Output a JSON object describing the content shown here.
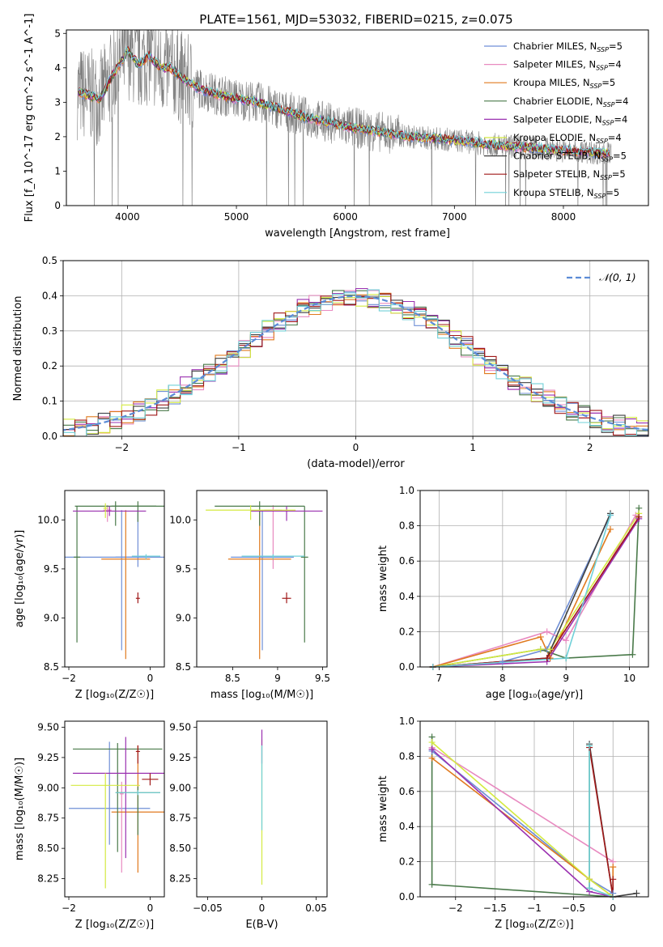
{
  "figure_title": "PLATE=1561, MJD=53032, FIBERID=0215, z=0.075",
  "colors": {
    "chabrier_miles": "#6f8fd6",
    "salpeter_miles": "#e88ac0",
    "kroupa_miles": "#e07a1f",
    "chabrier_elodie": "#4a7a4a",
    "salpeter_elodie": "#9a30b0",
    "kroupa_elodie": "#d4ea40",
    "chabrier_stelib": "#404040",
    "salpeter_stelib": "#a01818",
    "kroupa_stelib": "#70d0d8",
    "data": "#808080",
    "gaussian": "#5b8bd6",
    "grid": "#b0b0b0"
  },
  "chart_data": [
    {
      "id": "spectrum",
      "type": "line",
      "title": "PLATE=1561, MJD=53032, FIBERID=0215, z=0.075",
      "xlabel": "wavelength [Angstrom, rest frame]",
      "ylabel": "Flux [f_λ 10^-17 erg cm^-2 s^-1 A^-1]",
      "xlim": [
        3440,
        8780
      ],
      "ylim": [
        0,
        5.1
      ],
      "xticks": [
        4000,
        5000,
        6000,
        7000,
        8000
      ],
      "yticks": [
        0,
        1,
        2,
        3,
        4,
        5
      ],
      "grid": false,
      "legend_position": "top-right",
      "continuum": {
        "x": [
          3550,
          3650,
          3750,
          3850,
          3950,
          4000,
          4100,
          4200,
          4300,
          4400,
          4500,
          4600,
          4700,
          4800,
          5000,
          5200,
          5400,
          5600,
          5800,
          6000,
          6200,
          6400,
          6600,
          6800,
          7000,
          7200,
          7400,
          7600,
          7800,
          8000,
          8200,
          8400
        ],
        "y": [
          3.3,
          3.2,
          3.1,
          3.7,
          4.2,
          4.5,
          4.1,
          4.35,
          4.0,
          4.0,
          3.7,
          3.5,
          3.35,
          3.25,
          3.1,
          3.0,
          2.8,
          2.6,
          2.45,
          2.3,
          2.2,
          2.1,
          2.0,
          1.95,
          1.9,
          1.82,
          1.75,
          1.7,
          1.65,
          1.6,
          1.55,
          1.52
        ]
      },
      "series": [
        {
          "name": "Chabrier MILES, N_SSP=5",
          "label_main": "Chabrier MILES, N",
          "label_sub": "SSP",
          "label_tail": "=5",
          "color_key": "chabrier_miles"
        },
        {
          "name": "Salpeter MILES, N_SSP=4",
          "label_main": "Salpeter MILES, N",
          "label_sub": "SSP",
          "label_tail": "=4",
          "color_key": "salpeter_miles"
        },
        {
          "name": "Kroupa MILES, N_SSP=5",
          "label_main": "Kroupa MILES, N",
          "label_sub": "SSP",
          "label_tail": "=5",
          "color_key": "kroupa_miles"
        },
        {
          "name": "Chabrier ELODIE, N_SSP=4",
          "label_main": "Chabrier ELODIE, N",
          "label_sub": "SSP",
          "label_tail": "=4",
          "color_key": "chabrier_elodie"
        },
        {
          "name": "Salpeter ELODIE, N_SSP=4",
          "label_main": "Salpeter ELODIE, N",
          "label_sub": "SSP",
          "label_tail": "=4",
          "color_key": "salpeter_elodie"
        },
        {
          "name": "Kroupa ELODIE, N_SSP=4",
          "label_main": "Kroupa ELODIE, N",
          "label_sub": "SSP",
          "label_tail": "=4",
          "color_key": "kroupa_elodie"
        },
        {
          "name": "Chabrier STELIB, N_SSP=5",
          "label_main": "Chabrier STELIB, N",
          "label_sub": "SSP",
          "label_tail": "=5",
          "color_key": "chabrier_stelib"
        },
        {
          "name": "Salpeter STELIB, N_SSP=5",
          "label_main": "Salpeter STELIB, N",
          "label_sub": "SSP",
          "label_tail": "=5",
          "color_key": "salpeter_stelib"
        },
        {
          "name": "Kroupa STELIB, N_SSP=5",
          "label_main": "Kroupa STELIB, N",
          "label_sub": "SSP",
          "label_tail": "=5",
          "color_key": "kroupa_stelib"
        }
      ]
    },
    {
      "id": "residuals",
      "type": "histogram",
      "xlabel": "(data-model)/error",
      "ylabel": "Normed distribution",
      "xlim": [
        -2.5,
        2.5
      ],
      "ylim": [
        0,
        0.5
      ],
      "xticks": [
        -2,
        -1,
        0,
        1,
        2
      ],
      "yticks": [
        0.0,
        0.1,
        0.2,
        0.3,
        0.4,
        0.5
      ],
      "grid": true,
      "legend_position": "top-right",
      "legend_label": "𝒩(0, 1)",
      "bin_width": 0.1,
      "gaussian": {
        "mean": 0,
        "sigma": 1,
        "name": "𝒩(0, 1)"
      }
    },
    {
      "id": "age_vs_z",
      "type": "errorbar",
      "xlabel": "Z [log₁₀(Z/Z☉)]",
      "ylabel": "age  [log₁₀(age/yr)]",
      "xlim": [
        -2.1,
        0.35
      ],
      "ylim": [
        8.5,
        10.3
      ],
      "xticks": [
        -2,
        0
      ],
      "yticks": [
        8.5,
        9.0,
        9.5,
        10.0
      ],
      "grid": false,
      "points": [
        {
          "x": -0.7,
          "xerr": 1.5,
          "y": 9.62,
          "yerr": [
            0.95,
            0.48
          ],
          "color_key": "chabrier_miles"
        },
        {
          "x": -0.3,
          "xerr": 0.55,
          "y": 9.62,
          "yerr": [
            0.1,
            0.48
          ],
          "color_key": "chabrier_miles"
        },
        {
          "x": -1.05,
          "xerr": 0.1,
          "y": 10.1,
          "yerr": [
            0.12,
            0.05
          ],
          "color_key": "salpeter_miles"
        },
        {
          "x": -0.6,
          "xerr": 0.6,
          "y": 9.6,
          "yerr": [
            1.02,
            0.5
          ],
          "color_key": "kroupa_miles"
        },
        {
          "x": -0.85,
          "xerr": 1.0,
          "y": 10.14,
          "yerr": [
            0.2,
            0.05
          ],
          "color_key": "chabrier_elodie"
        },
        {
          "x": -0.3,
          "xerr": 0.65,
          "y": 10.14,
          "yerr": [
            0.16,
            0.05
          ],
          "color_key": "chabrier_elodie"
        },
        {
          "x": -1.8,
          "xerr": 0.08,
          "y": 9.62,
          "yerr": [
            0.87,
            0.52
          ],
          "color_key": "chabrier_elodie"
        },
        {
          "x": -1.0,
          "xerr": 0.9,
          "y": 10.09,
          "yerr": [
            0.05,
            0.05
          ],
          "color_key": "salpeter_elodie"
        },
        {
          "x": -1.1,
          "xerr": 0.05,
          "y": 10.12,
          "yerr": [
            0.1,
            0.05
          ],
          "color_key": "kroupa_elodie"
        },
        {
          "x": -0.3,
          "xerr": 0.05,
          "y": 9.2,
          "yerr": [
            0.05,
            0.06
          ],
          "color_key": "salpeter_stelib"
        },
        {
          "x": -0.1,
          "xerr": 0.35,
          "y": 9.63,
          "yerr": [
            0.03,
            0.02
          ],
          "color_key": "kroupa_stelib"
        }
      ]
    },
    {
      "id": "age_vs_mass",
      "type": "errorbar",
      "xlabel": "mass [log₁₀(M/M☉)]",
      "ylabel": "",
      "xlim": [
        8.1,
        9.55
      ],
      "ylim": [
        8.5,
        10.3
      ],
      "xticks": [
        8.5,
        9.0,
        9.5
      ],
      "yticks": [
        8.5,
        9.0,
        9.5,
        10.0
      ],
      "grid": false,
      "points": [
        {
          "x": 8.83,
          "xerr": 0.35,
          "y": 9.62,
          "yerr": [
            0.95,
            0.48
          ],
          "color_key": "chabrier_miles"
        },
        {
          "x": 8.95,
          "xerr": 0.1,
          "y": 10.1,
          "yerr": [
            0.6,
            0.05
          ],
          "color_key": "salpeter_miles"
        },
        {
          "x": 8.8,
          "xerr": 0.35,
          "y": 9.6,
          "yerr": [
            1.02,
            0.5
          ],
          "color_key": "kroupa_miles"
        },
        {
          "x": 8.8,
          "xerr": 0.5,
          "y": 10.14,
          "yerr": [
            0.2,
            0.05
          ],
          "color_key": "chabrier_elodie"
        },
        {
          "x": 9.3,
          "xerr": 0.04,
          "y": 9.62,
          "yerr": [
            0.87,
            0.52
          ],
          "color_key": "chabrier_elodie"
        },
        {
          "x": 9.1,
          "xerr": 0.4,
          "y": 10.09,
          "yerr": [
            0.1,
            0.05
          ],
          "color_key": "salpeter_elodie"
        },
        {
          "x": 8.7,
          "xerr": 0.5,
          "y": 10.1,
          "yerr": [
            0.1,
            0.05
          ],
          "color_key": "kroupa_elodie"
        },
        {
          "x": 9.1,
          "xerr": 0.05,
          "y": 9.2,
          "yerr": [
            0.05,
            0.06
          ],
          "color_key": "salpeter_stelib"
        },
        {
          "x": 8.95,
          "xerr": 0.35,
          "y": 9.63,
          "yerr": [
            0.03,
            0.02
          ],
          "color_key": "kroupa_stelib"
        }
      ]
    },
    {
      "id": "weight_vs_age",
      "type": "line",
      "xlabel": "age  [log₁₀(age/yr)]",
      "ylabel": "mass weight",
      "xlim": [
        6.7,
        10.3
      ],
      "ylim": [
        0,
        1.0
      ],
      "xticks": [
        7,
        8,
        9,
        10
      ],
      "yticks": [
        0.0,
        0.2,
        0.4,
        0.6,
        0.8,
        1.0
      ],
      "grid": true,
      "series": [
        {
          "color_key": "chabrier_miles",
          "x": [
            6.9,
            8.0,
            8.7,
            9.7
          ],
          "y": [
            0.0,
            0.03,
            0.1,
            0.86
          ]
        },
        {
          "color_key": "salpeter_miles",
          "x": [
            6.9,
            8.7,
            9.0,
            10.1
          ],
          "y": [
            0.0,
            0.2,
            0.15,
            0.86
          ]
        },
        {
          "color_key": "kroupa_miles",
          "x": [
            6.9,
            8.6,
            8.75,
            9.7
          ],
          "y": [
            0.0,
            0.17,
            0.05,
            0.78
          ]
        },
        {
          "color_key": "chabrier_elodie",
          "x": [
            6.9,
            8.6,
            9.0,
            10.05,
            10.15
          ],
          "y": [
            0.0,
            0.1,
            0.05,
            0.07,
            0.9
          ]
        },
        {
          "color_key": "salpeter_elodie",
          "x": [
            6.9,
            8.7,
            10.15
          ],
          "y": [
            0.0,
            0.03,
            0.84
          ]
        },
        {
          "color_key": "kroupa_elodie",
          "x": [
            6.9,
            8.6,
            8.75,
            10.15
          ],
          "y": [
            0.0,
            0.1,
            0.1,
            0.87
          ]
        },
        {
          "color_key": "chabrier_stelib",
          "x": [
            6.9,
            8.7,
            9.7
          ],
          "y": [
            0.0,
            0.05,
            0.87
          ]
        },
        {
          "color_key": "salpeter_stelib",
          "x": [
            6.9,
            8.7,
            10.15
          ],
          "y": [
            0.0,
            0.05,
            0.85
          ]
        },
        {
          "color_key": "kroupa_stelib",
          "x": [
            6.9,
            9.0,
            9.7
          ],
          "y": [
            0.0,
            0.05,
            0.86
          ]
        }
      ]
    },
    {
      "id": "mass_vs_z",
      "type": "errorbar",
      "xlabel": "Z [log₁₀(Z/Z☉)]",
      "ylabel": "mass [log₁₀(M/M☉)]",
      "xlim": [
        -2.1,
        0.35
      ],
      "ylim": [
        8.1,
        9.55
      ],
      "xticks": [
        -2,
        0
      ],
      "yticks": [
        8.25,
        8.5,
        8.75,
        9.0,
        9.25,
        9.5
      ],
      "grid": false,
      "points": [
        {
          "x": -1.0,
          "xerr": 1.0,
          "y": 8.83,
          "yerr": [
            0.3,
            0.55
          ],
          "color_key": "chabrier_miles"
        },
        {
          "x": -0.7,
          "xerr": 0.05,
          "y": 8.95,
          "yerr": [
            0.65,
            0.1
          ],
          "color_key": "salpeter_miles"
        },
        {
          "x": -0.3,
          "xerr": 0.65,
          "y": 8.8,
          "yerr": [
            0.5,
            0.55
          ],
          "color_key": "kroupa_miles"
        },
        {
          "x": -0.8,
          "xerr": 1.1,
          "y": 9.32,
          "yerr": [
            0.85,
            0.05
          ],
          "color_key": "chabrier_elodie"
        },
        {
          "x": -0.3,
          "xerr": 0.55,
          "y": 8.96,
          "yerr": [
            0.35,
            0.05
          ],
          "color_key": "chabrier_elodie"
        },
        {
          "x": -0.3,
          "xerr": 0.05,
          "y": 9.3,
          "yerr": [
            0.1,
            0.05
          ],
          "color_key": "salpeter_stelib"
        },
        {
          "x": -0.6,
          "xerr": 1.3,
          "y": 9.12,
          "yerr": [
            0.7,
            0.3
          ],
          "color_key": "salpeter_elodie"
        },
        {
          "x": -1.1,
          "xerr": 0.85,
          "y": 9.02,
          "yerr": [
            0.85,
            0.1
          ],
          "color_key": "kroupa_elodie"
        },
        {
          "x": 0.0,
          "xerr": 0.2,
          "y": 9.07,
          "yerr": [
            0.05,
            0.05
          ],
          "color_key": "salpeter_stelib"
        },
        {
          "x": -0.3,
          "xerr": 0.55,
          "y": 8.96,
          "yerr": [
            0.02,
            0.02
          ],
          "color_key": "kroupa_stelib"
        }
      ]
    },
    {
      "id": "mass_vs_ebv",
      "type": "errorbar",
      "xlabel": "E(B-V)",
      "ylabel": "",
      "xlim": [
        -0.06,
        0.06
      ],
      "ylim": [
        8.1,
        9.55
      ],
      "xticks": [
        -0.05,
        0.0,
        0.05
      ],
      "yticks": [
        8.25,
        8.5,
        8.75,
        9.0,
        9.25,
        9.5
      ],
      "grid": false,
      "points": [
        {
          "x": 0.0,
          "xerr": 0.0,
          "y": 9.0,
          "yerr": [
            0.8,
            0.4
          ],
          "color_key": "kroupa_elodie"
        },
        {
          "x": 0.0,
          "xerr": 0.0,
          "y": 9.3,
          "yerr": [
            0.1,
            0.18
          ],
          "color_key": "salpeter_elodie"
        },
        {
          "x": 0.0,
          "xerr": 0.0,
          "y": 9.0,
          "yerr": [
            0.35,
            0.35
          ],
          "color_key": "kroupa_stelib"
        }
      ]
    },
    {
      "id": "weight_vs_z",
      "type": "line",
      "xlabel": "Z [log₁₀(Z/Z☉)]",
      "ylabel": "mass weight",
      "xlim": [
        -2.45,
        0.45
      ],
      "ylim": [
        0,
        1.0
      ],
      "xticks": [
        -2.0,
        -1.5,
        -1.0,
        -0.5,
        0.0
      ],
      "yticks": [
        0.0,
        0.2,
        0.4,
        0.6,
        0.8,
        1.0
      ],
      "grid": true,
      "series": [
        {
          "color_key": "chabrier_miles",
          "x": [
            -2.3,
            -0.3,
            0.0
          ],
          "y": [
            0.83,
            0.1,
            0.02
          ]
        },
        {
          "color_key": "salpeter_miles",
          "x": [
            -2.3,
            0.0
          ],
          "y": [
            0.85,
            0.2
          ]
        },
        {
          "color_key": "kroupa_miles",
          "x": [
            -2.3,
            -0.3,
            0.0,
            0.0
          ],
          "y": [
            0.79,
            0.1,
            0.0,
            0.17
          ]
        },
        {
          "color_key": "chabrier_elodie",
          "x": [
            -2.3,
            -2.3,
            0.0,
            -0.3,
            -0.3
          ],
          "y": [
            0.91,
            0.07,
            0.0,
            0.05,
            0.86
          ]
        },
        {
          "color_key": "salpeter_elodie",
          "x": [
            -2.3,
            -0.3,
            0.0
          ],
          "y": [
            0.84,
            0.03,
            0.0
          ]
        },
        {
          "color_key": "kroupa_elodie",
          "x": [
            -2.3,
            -0.3,
            0.0
          ],
          "y": [
            0.88,
            0.1,
            0.0
          ]
        },
        {
          "color_key": "chabrier_stelib",
          "x": [
            -0.3,
            0.0,
            0.3
          ],
          "y": [
            0.87,
            0.0,
            0.02
          ]
        },
        {
          "color_key": "salpeter_stelib",
          "x": [
            -0.3,
            0.0,
            0.0
          ],
          "y": [
            0.85,
            0.0,
            0.1
          ]
        },
        {
          "color_key": "kroupa_stelib",
          "x": [
            -0.3,
            -0.3,
            0.0
          ],
          "y": [
            0.86,
            0.05,
            0.0
          ]
        }
      ]
    }
  ]
}
